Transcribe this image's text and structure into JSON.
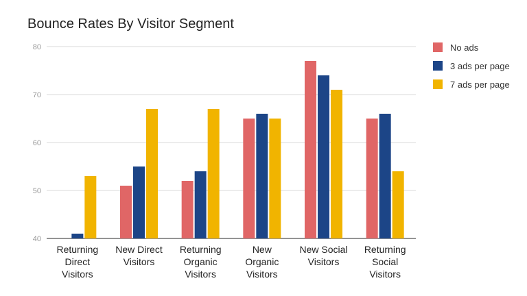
{
  "chart_data": {
    "type": "bar",
    "title": "Bounce Rates By Visitor Segment",
    "xlabel": "",
    "ylabel": "",
    "ylim": [
      40,
      80
    ],
    "yticks": [
      40,
      50,
      60,
      70,
      80
    ],
    "grid": true,
    "legend_position": "right",
    "categories": [
      [
        "Returning",
        "Direct",
        "Visitors"
      ],
      [
        "New Direct",
        "Visitors"
      ],
      [
        "Returning",
        "Organic",
        "Visitors"
      ],
      [
        "New",
        "Organic",
        "Visitors"
      ],
      [
        "New Social",
        "Visitors"
      ],
      [
        "Returning",
        "Social",
        "Visitors"
      ]
    ],
    "series": [
      {
        "name": "No ads",
        "color": "#e06666",
        "values": [
          null,
          51,
          52,
          65,
          77,
          65
        ]
      },
      {
        "name": "3 ads per page",
        "color": "#1c4587",
        "values": [
          41,
          55,
          54,
          66,
          74,
          66
        ]
      },
      {
        "name": "7 ads per page",
        "color": "#f1b400",
        "values": [
          53,
          67,
          67,
          65,
          71,
          54
        ]
      }
    ]
  }
}
